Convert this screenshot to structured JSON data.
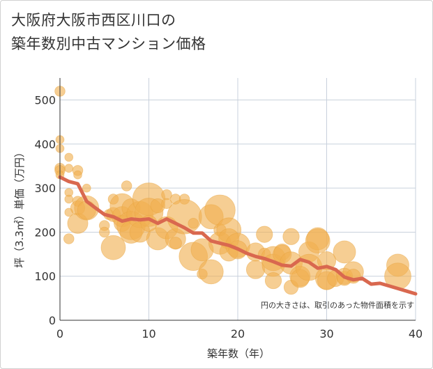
{
  "title": {
    "line1": "大阪府大阪市西区川口の",
    "line2": "築年数別中古マンション価格"
  },
  "colors": {
    "bubble": "#f0b050",
    "bubble_stroke": "#e8a33e",
    "line": "#d9684f",
    "grid": "#c8d0dc",
    "axis": "#333333"
  },
  "chart_data": {
    "type": "scatter",
    "xlabel": "築年数（年）",
    "ylabel": "坪（3.3㎡）単価（万円）",
    "xlim": [
      0,
      40
    ],
    "ylim": [
      0,
      550
    ],
    "xticks": [
      0,
      10,
      20,
      30,
      40
    ],
    "yticks": [
      0,
      100,
      200,
      300,
      400,
      500
    ],
    "grid": true,
    "note": "円の大きさは、取引のあった物件面積を示す",
    "points": [
      {
        "x": 0,
        "y": 520,
        "s": 3
      },
      {
        "x": 0,
        "y": 410,
        "s": 2
      },
      {
        "x": 0,
        "y": 390,
        "s": 2
      },
      {
        "x": 0,
        "y": 345,
        "s": 3
      },
      {
        "x": 0,
        "y": 340,
        "s": 3
      },
      {
        "x": 0,
        "y": 330,
        "s": 2
      },
      {
        "x": 1,
        "y": 370,
        "s": 2
      },
      {
        "x": 1,
        "y": 345,
        "s": 2
      },
      {
        "x": 1,
        "y": 290,
        "s": 2
      },
      {
        "x": 1,
        "y": 275,
        "s": 2
      },
      {
        "x": 1,
        "y": 245,
        "s": 2
      },
      {
        "x": 1,
        "y": 185,
        "s": 3
      },
      {
        "x": 2,
        "y": 340,
        "s": 3
      },
      {
        "x": 2,
        "y": 330,
        "s": 2
      },
      {
        "x": 2,
        "y": 270,
        "s": 3
      },
      {
        "x": 2,
        "y": 255,
        "s": 5
      },
      {
        "x": 2,
        "y": 220,
        "s": 8
      },
      {
        "x": 3,
        "y": 300,
        "s": 2
      },
      {
        "x": 3,
        "y": 255,
        "s": 10
      },
      {
        "x": 3,
        "y": 250,
        "s": 7
      },
      {
        "x": 5,
        "y": 215,
        "s": 3
      },
      {
        "x": 5,
        "y": 200,
        "s": 3
      },
      {
        "x": 5.5,
        "y": 240,
        "s": 3
      },
      {
        "x": 6,
        "y": 275,
        "s": 3
      },
      {
        "x": 6,
        "y": 240,
        "s": 5
      },
      {
        "x": 6,
        "y": 165,
        "s": 10
      },
      {
        "x": 7,
        "y": 260,
        "s": 10
      },
      {
        "x": 7,
        "y": 235,
        "s": 8
      },
      {
        "x": 7,
        "y": 220,
        "s": 6
      },
      {
        "x": 7.5,
        "y": 305,
        "s": 3
      },
      {
        "x": 8,
        "y": 255,
        "s": 7
      },
      {
        "x": 8,
        "y": 215,
        "s": 12
      },
      {
        "x": 8,
        "y": 200,
        "s": 9
      },
      {
        "x": 9,
        "y": 240,
        "s": 11
      },
      {
        "x": 9,
        "y": 200,
        "s": 8
      },
      {
        "x": 10,
        "y": 275,
        "s": 14
      },
      {
        "x": 10,
        "y": 245,
        "s": 12
      },
      {
        "x": 10,
        "y": 220,
        "s": 6
      },
      {
        "x": 11,
        "y": 260,
        "s": 5
      },
      {
        "x": 11,
        "y": 185,
        "s": 9
      },
      {
        "x": 12,
        "y": 285,
        "s": 3
      },
      {
        "x": 12,
        "y": 265,
        "s": 3
      },
      {
        "x": 12,
        "y": 210,
        "s": 9
      },
      {
        "x": 13,
        "y": 275,
        "s": 3
      },
      {
        "x": 13,
        "y": 185,
        "s": 8
      },
      {
        "x": 13,
        "y": 175,
        "s": 4
      },
      {
        "x": 14,
        "y": 275,
        "s": 3
      },
      {
        "x": 14,
        "y": 235,
        "s": 15
      },
      {
        "x": 15,
        "y": 220,
        "s": 3
      },
      {
        "x": 15,
        "y": 145,
        "s": 12
      },
      {
        "x": 16,
        "y": 160,
        "s": 9
      },
      {
        "x": 16,
        "y": 105,
        "s": 3
      },
      {
        "x": 17,
        "y": 235,
        "s": 10
      },
      {
        "x": 17,
        "y": 110,
        "s": 10
      },
      {
        "x": 18,
        "y": 250,
        "s": 13
      },
      {
        "x": 18,
        "y": 205,
        "s": 4
      },
      {
        "x": 18,
        "y": 175,
        "s": 9
      },
      {
        "x": 19,
        "y": 205,
        "s": 10
      },
      {
        "x": 19,
        "y": 185,
        "s": 8
      },
      {
        "x": 19,
        "y": 155,
        "s": 7
      },
      {
        "x": 20,
        "y": 170,
        "s": 10
      },
      {
        "x": 20,
        "y": 160,
        "s": 7
      },
      {
        "x": 22,
        "y": 155,
        "s": 7
      },
      {
        "x": 22,
        "y": 115,
        "s": 7
      },
      {
        "x": 23,
        "y": 195,
        "s": 6
      },
      {
        "x": 23,
        "y": 150,
        "s": 4
      },
      {
        "x": 24,
        "y": 140,
        "s": 10
      },
      {
        "x": 24,
        "y": 125,
        "s": 9
      },
      {
        "x": 24,
        "y": 90,
        "s": 6
      },
      {
        "x": 25,
        "y": 155,
        "s": 6
      },
      {
        "x": 25,
        "y": 150,
        "s": 7
      },
      {
        "x": 26,
        "y": 190,
        "s": 6
      },
      {
        "x": 26,
        "y": 130,
        "s": 9
      },
      {
        "x": 26,
        "y": 75,
        "s": 5
      },
      {
        "x": 27,
        "y": 100,
        "s": 8
      },
      {
        "x": 27,
        "y": 95,
        "s": 7
      },
      {
        "x": 28,
        "y": 155,
        "s": 8
      },
      {
        "x": 28,
        "y": 120,
        "s": 11
      },
      {
        "x": 29,
        "y": 185,
        "s": 9
      },
      {
        "x": 29,
        "y": 180,
        "s": 10
      },
      {
        "x": 30,
        "y": 135,
        "s": 7
      },
      {
        "x": 30,
        "y": 95,
        "s": 9
      },
      {
        "x": 30,
        "y": 90,
        "s": 7
      },
      {
        "x": 31,
        "y": 95,
        "s": 6
      },
      {
        "x": 32,
        "y": 155,
        "s": 9
      },
      {
        "x": 32,
        "y": 100,
        "s": 6
      },
      {
        "x": 32,
        "y": 95,
        "s": 5
      },
      {
        "x": 33,
        "y": 110,
        "s": 8
      },
      {
        "x": 33,
        "y": 100,
        "s": 5
      },
      {
        "x": 38,
        "y": 125,
        "s": 9
      },
      {
        "x": 38,
        "y": 100,
        "s": 11
      }
    ],
    "line": {
      "x": [
        0,
        1,
        2,
        3,
        4,
        5,
        6,
        7,
        8,
        9,
        10,
        11,
        12,
        13,
        14,
        15,
        16,
        17,
        18,
        19,
        20,
        21,
        22,
        23,
        24,
        25,
        26,
        27,
        28,
        29,
        30,
        31,
        32,
        33,
        34,
        35,
        36,
        37,
        38,
        39,
        40
      ],
      "y": [
        325,
        315,
        310,
        270,
        255,
        240,
        235,
        225,
        230,
        228,
        230,
        220,
        230,
        220,
        210,
        198,
        198,
        180,
        175,
        170,
        162,
        152,
        145,
        140,
        133,
        125,
        123,
        138,
        132,
        118,
        122,
        115,
        98,
        92,
        95,
        82,
        84,
        78,
        72,
        66,
        60
      ]
    }
  }
}
